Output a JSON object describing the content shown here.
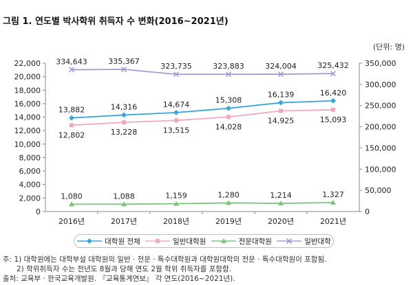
{
  "title": "그림 1. 연도별 박사학위 취득자 수 변화(2016~2021년)",
  "unit": "(단위: 명)",
  "chart_data": {
    "type": "line",
    "categories": [
      "2016년",
      "2017년",
      "2018년",
      "2019년",
      "2020년",
      "2021년"
    ],
    "left_axis": {
      "ylim": [
        0,
        22000
      ],
      "ticks": [
        "0",
        "2,000",
        "4,000",
        "6,000",
        "8,000",
        "10,000",
        "12,000",
        "14,000",
        "16,000",
        "18,000",
        "20,000",
        "22,000"
      ]
    },
    "right_axis": {
      "ylim": [
        0,
        350000
      ],
      "ticks": [
        "0",
        "50,000",
        "100,000",
        "150,000",
        "200,000",
        "250,000",
        "300,000",
        "350,000"
      ]
    },
    "series": [
      {
        "name": "대학원 전체",
        "axis": "left",
        "color": "#3aa6d8",
        "marker": "diamond",
        "values": [
          13882,
          14316,
          14674,
          15308,
          16139,
          16420
        ],
        "labels": [
          "13,882",
          "14,316",
          "14,674",
          "15,308",
          "16,139",
          "16,420"
        ],
        "label_pos": "above"
      },
      {
        "name": "일반대학원",
        "axis": "left",
        "color": "#f4a7c4",
        "marker": "square",
        "values": [
          12802,
          13228,
          13515,
          14028,
          14925,
          15093
        ],
        "labels": [
          "12,802",
          "13,228",
          "13,515",
          "14,028",
          "14,925",
          "15,093"
        ],
        "label_pos": "below"
      },
      {
        "name": "전문대학원",
        "axis": "left",
        "color": "#7cc47a",
        "marker": "triangle",
        "values": [
          1080,
          1088,
          1159,
          1280,
          1214,
          1327
        ],
        "labels": [
          "1,080",
          "1,088",
          "1,159",
          "1,280",
          "1,214",
          "1,327"
        ],
        "label_pos": "above"
      },
      {
        "name": "일반대학",
        "axis": "right",
        "color": "#a799d6",
        "marker": "x",
        "values": [
          334643,
          335367,
          323735,
          323883,
          324004,
          325432
        ],
        "labels": [
          "334,643",
          "335,367",
          "323,735",
          "323,883",
          "324,004",
          "325,432"
        ],
        "label_pos": "above"
      }
    ],
    "legend_placement": "bottom",
    "grid": false
  },
  "notes": [
    "주: 1) 대학원에는 대학부설 대학원의 일반 · 전문 · 특수대학원과 대학원대학의 전문 · 특수대학원이 포함됨.",
    "2) 학위취득자 수는 전년도 8월과 당해 연도 2월 학위 취득자를 포함함.",
    "출처: 교육부 · 한국교육개발원. 『교육통계연보』 각 연도(2016~2021년)."
  ]
}
